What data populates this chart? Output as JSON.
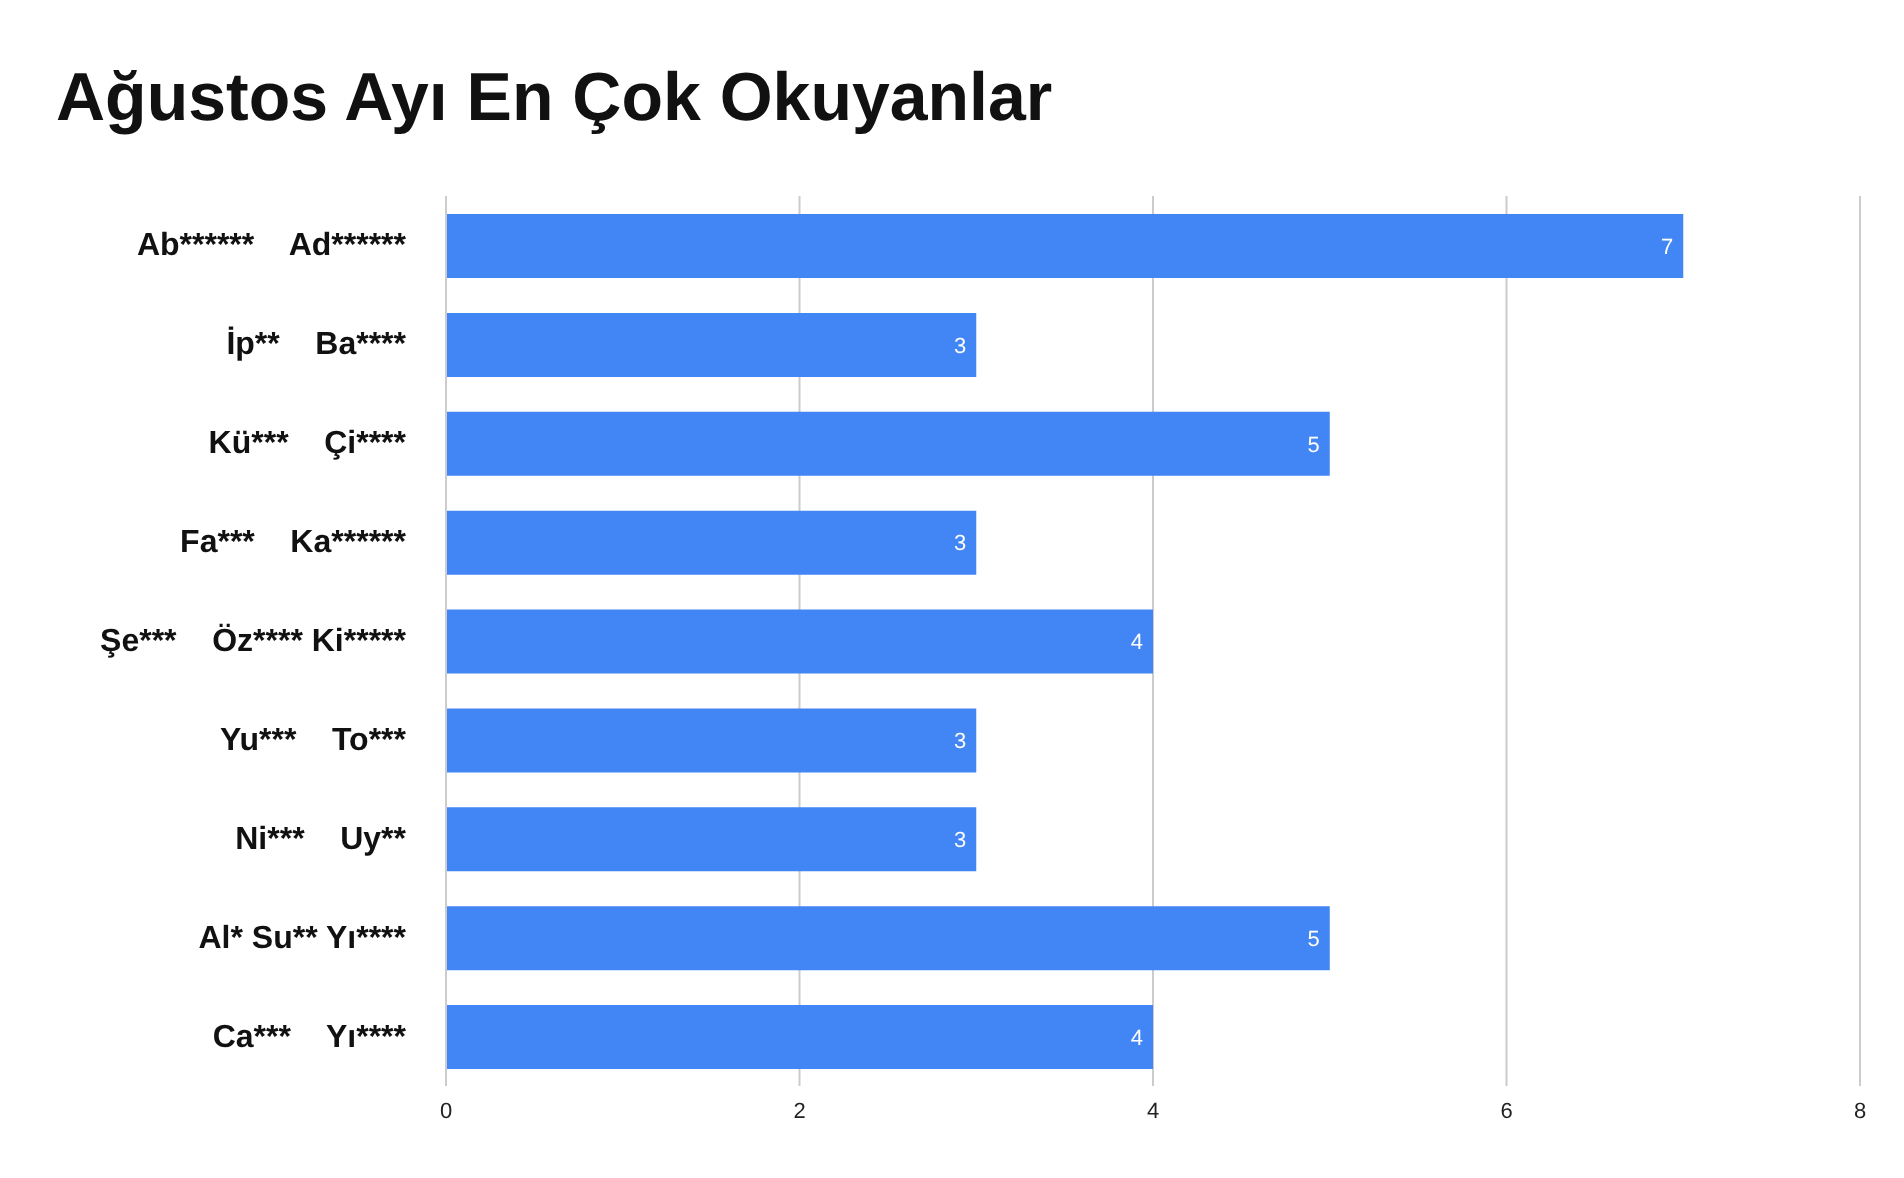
{
  "chart_data": {
    "type": "bar",
    "orientation": "horizontal",
    "title": "Ağustos Ayı En Çok Okuyanlar",
    "categories": [
      "Ab******    Ad******",
      "İp**    Ba****",
      "Kü***    Çi****",
      "Fa***    Ka******",
      "Şe***    Öz**** Ki*****",
      "Yu***    To***",
      "Ni***    Uy**",
      "Al* Su** Yı****",
      "Ca***    Yı****"
    ],
    "values": [
      7,
      3,
      5,
      3,
      4,
      3,
      3,
      5,
      4
    ],
    "color": "#4285f4",
    "xlim": [
      0,
      8
    ],
    "xticks": [
      0,
      2,
      4,
      6,
      8
    ],
    "grid": "x",
    "data_labels": true
  }
}
